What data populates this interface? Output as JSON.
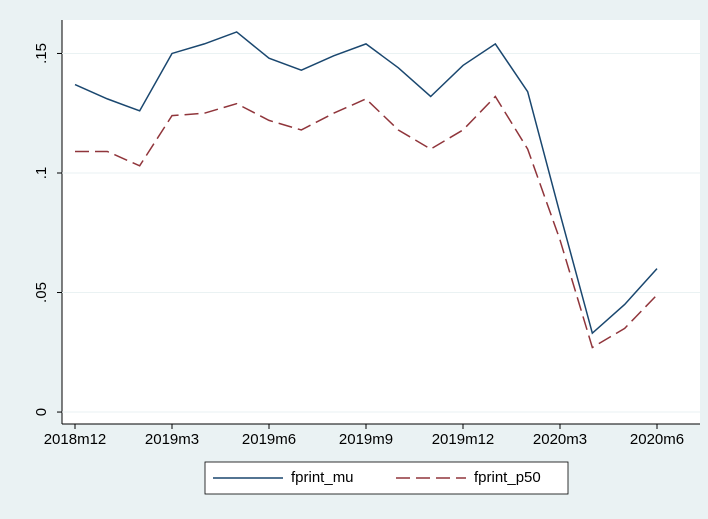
{
  "chart_data": {
    "type": "line",
    "categories": [
      "2018m12",
      null,
      null,
      "2019m3",
      null,
      null,
      "2019m6",
      null,
      null,
      "2019m9",
      null,
      null,
      "2019m12",
      null,
      null,
      "2020m3",
      null,
      null,
      "2020m6"
    ],
    "series": [
      {
        "name": "fprint_mu",
        "color": "#1a476f",
        "dash": false,
        "values": [
          0.137,
          0.131,
          0.126,
          0.15,
          0.154,
          0.159,
          0.148,
          0.143,
          0.149,
          0.154,
          0.144,
          0.132,
          0.145,
          0.154,
          0.134,
          0.083,
          0.033,
          0.045,
          0.06
        ]
      },
      {
        "name": "fprint_p50",
        "color": "#90353b",
        "dash": true,
        "values": [
          0.109,
          0.109,
          0.103,
          0.124,
          0.125,
          0.129,
          0.122,
          0.118,
          0.125,
          0.131,
          0.118,
          0.11,
          0.118,
          0.132,
          0.11,
          0.072,
          0.027,
          0.035,
          0.049
        ]
      }
    ],
    "ylim": [
      -0.005,
      0.164
    ],
    "yticks": [
      0,
      {
        "value": 0.05,
        "label": ".05"
      },
      {
        "value": 0.1,
        "label": ".1"
      },
      {
        "value": 0.15,
        "label": ".15"
      }
    ],
    "grid": true
  }
}
